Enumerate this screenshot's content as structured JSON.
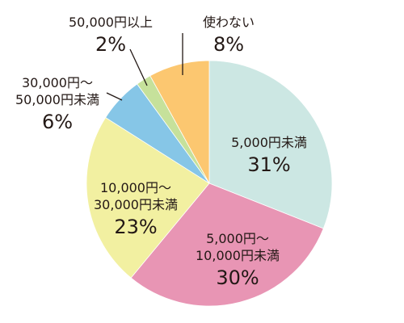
{
  "chart_data": {
    "type": "pie",
    "title": "",
    "start": "12 o'clock",
    "direction": "clockwise",
    "legend": "none",
    "slices": [
      {
        "lines": [
          "5,000円未満"
        ],
        "value": 31,
        "value_label": "31%",
        "color": "#cce7e3"
      },
      {
        "lines": [
          "5,000円～",
          "10,000円未満"
        ],
        "value": 30,
        "value_label": "30%",
        "color": "#e895b4"
      },
      {
        "lines": [
          "10,000円～",
          "30,000円未満"
        ],
        "value": 23,
        "value_label": "23%",
        "color": "#f2f0a1"
      },
      {
        "lines": [
          "30,000円～",
          "50,000円未満"
        ],
        "value": 6,
        "value_label": "6%",
        "color": "#86c6e7"
      },
      {
        "lines": [
          "50,000円以上"
        ],
        "value": 2,
        "value_label": "2%",
        "color": "#c6e19b"
      },
      {
        "lines": [
          "使わない"
        ],
        "value": 8,
        "value_label": "8%",
        "color": "#fcc770"
      }
    ]
  }
}
